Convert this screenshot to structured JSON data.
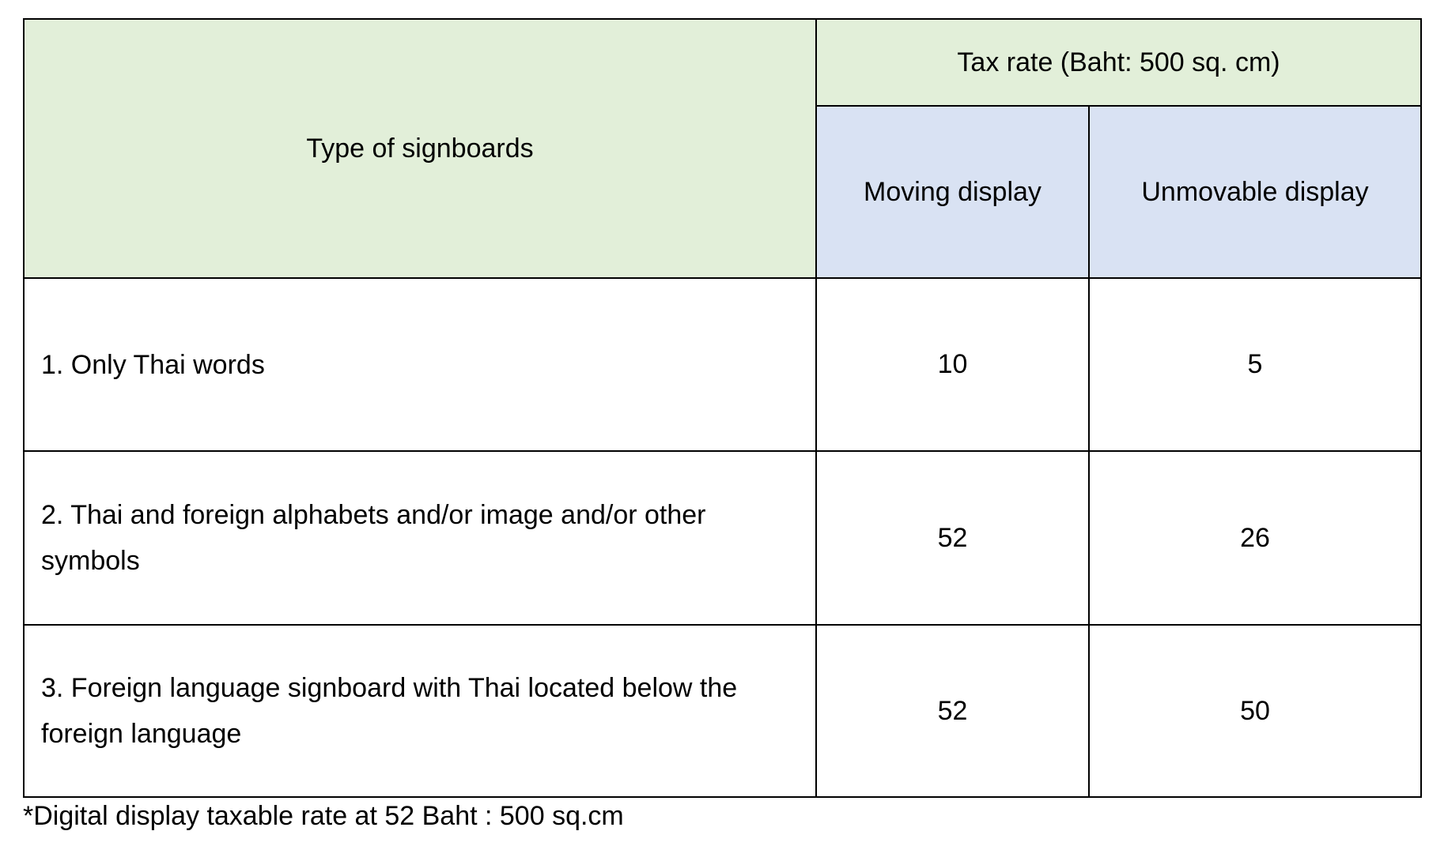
{
  "table": {
    "header": {
      "type_label": "Type of signboards",
      "tax_rate_label": "Tax rate (Baht: 500 sq. cm)",
      "columns": [
        "Moving display",
        "Unmovable display"
      ]
    },
    "rows": [
      {
        "type": "1. Only Thai words",
        "moving": "10",
        "unmovable": "5"
      },
      {
        "type": "2. Thai and foreign alphabets and/or image and/or other symbols",
        "moving": "52",
        "unmovable": "26"
      },
      {
        "type": "3. Foreign language signboard with Thai located below the foreign language",
        "moving": "52",
        "unmovable": "50"
      }
    ],
    "colors": {
      "header_green": "#e2efd9",
      "header_blue": "#d9e2f3"
    }
  },
  "footnote": "*Digital display taxable rate at 52 Baht : 500 sq.cm"
}
